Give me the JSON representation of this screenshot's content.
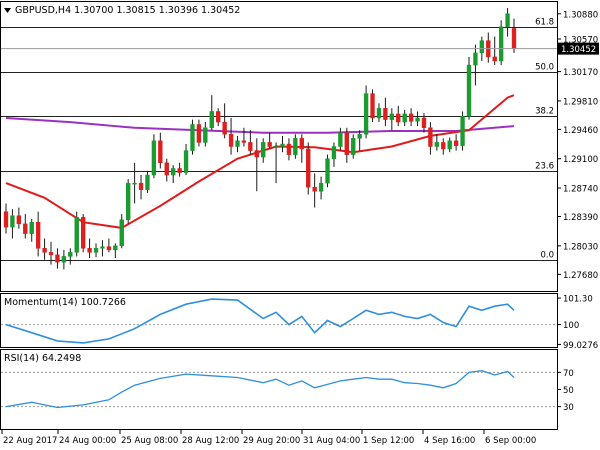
{
  "colors": {
    "up": "#1a9a2f",
    "down": "#dd1f1f",
    "wick": "#1a1a1a",
    "sma_fast": "#e11b1b",
    "sma_slow": "#9b30c2",
    "indicator": "#2f8fde",
    "fib_line": "#222222",
    "guide": "#9a9a9a",
    "axis": "#000000",
    "price_tag_bg": "#000000",
    "price_tag_fg": "#ffffff"
  },
  "icons": {
    "collapse": "triangle-down-icon"
  },
  "chart_data": [
    {
      "type": "candlestick",
      "title": "GBPUSD,H4  1.30700 1.30815 1.30396 1.30452",
      "symbol": "GBPUSD",
      "timeframe": "H4",
      "ohlc_header": {
        "open": 1.307,
        "high": 1.30815,
        "low": 1.30396,
        "close": 1.30452
      },
      "current_price_label": "1.30452",
      "ylim": [
        1.275,
        1.31
      ],
      "y_tick_labels": [
        "1.30880",
        "1.30570",
        "1.30170",
        "1.29810",
        "1.29460",
        "1.29100",
        "1.28740",
        "1.28390",
        "1.28030",
        "1.27680"
      ],
      "x_tick_labels": [
        "22 Aug 2017",
        "24 Aug 00:00",
        "25 Aug 08:00",
        "28 Aug 12:00",
        "29 Aug 20:00",
        "31 Aug 04:00",
        "1 Sep 12:00",
        "4 Sep 16:00",
        "6 Sep 00:00"
      ],
      "fib_levels": [
        {
          "label": "61.8",
          "price": 1.3072
        },
        {
          "label": "50.0",
          "price": 1.3017
        },
        {
          "label": "38.2",
          "price": 1.2963
        },
        {
          "label": "23.6",
          "price": 1.2895
        },
        {
          "label": "0.0",
          "price": 1.2786
        }
      ],
      "candles": [
        [
          1.2845,
          1.2855,
          1.2818,
          1.2826
        ],
        [
          1.2826,
          1.2848,
          1.2812,
          1.284
        ],
        [
          1.284,
          1.285,
          1.2824,
          1.283
        ],
        [
          1.283,
          1.2842,
          1.2812,
          1.2818
        ],
        [
          1.2818,
          1.2836,
          1.2808,
          1.2832
        ],
        [
          1.2832,
          1.2845,
          1.279,
          1.28
        ],
        [
          1.28,
          1.2812,
          1.2786,
          1.2795
        ],
        [
          1.2795,
          1.2808,
          1.278,
          1.2792
        ],
        [
          1.2792,
          1.28,
          1.2775,
          1.2783
        ],
        [
          1.2783,
          1.2798,
          1.2774,
          1.279
        ],
        [
          1.279,
          1.28,
          1.278,
          1.2795
        ],
        [
          1.2795,
          1.2845,
          1.279,
          1.2838
        ],
        [
          1.2838,
          1.2842,
          1.2795,
          1.28
        ],
        [
          1.28,
          1.2812,
          1.2788,
          1.2795
        ],
        [
          1.2795,
          1.2806,
          1.2789,
          1.28
        ],
        [
          1.28,
          1.281,
          1.279,
          1.2802
        ],
        [
          1.2802,
          1.2812,
          1.2795,
          1.2798
        ],
        [
          1.2798,
          1.2806,
          1.2788,
          1.2803
        ],
        [
          1.2803,
          1.2842,
          1.28,
          1.2835
        ],
        [
          1.2835,
          1.2885,
          1.283,
          1.288
        ],
        [
          1.288,
          1.2905,
          1.2855,
          1.288
        ],
        [
          1.288,
          1.289,
          1.286,
          1.2872
        ],
        [
          1.2872,
          1.2895,
          1.2868,
          1.289
        ],
        [
          1.289,
          1.294,
          1.2886,
          1.2932
        ],
        [
          1.2932,
          1.2942,
          1.2898,
          1.2905
        ],
        [
          1.2905,
          1.291,
          1.2882,
          1.289
        ],
        [
          1.289,
          1.2902,
          1.288,
          1.2898
        ],
        [
          1.2898,
          1.2905,
          1.2888,
          1.2893
        ],
        [
          1.2893,
          1.2928,
          1.289,
          1.292
        ],
        [
          1.292,
          1.2958,
          1.2915,
          1.2952
        ],
        [
          1.2952,
          1.2958,
          1.2925,
          1.293
        ],
        [
          1.293,
          1.2955,
          1.2925,
          1.2948
        ],
        [
          1.2948,
          1.2988,
          1.2945,
          1.2968
        ],
        [
          1.2968,
          1.2972,
          1.295,
          1.2955
        ],
        [
          1.2955,
          1.2978,
          1.2935,
          1.294
        ],
        [
          1.294,
          1.296,
          1.2915,
          1.2925
        ],
        [
          1.2925,
          1.2938,
          1.2918,
          1.2932
        ],
        [
          1.2932,
          1.2948,
          1.2925,
          1.293
        ],
        [
          1.293,
          1.2945,
          1.2915,
          1.292
        ],
        [
          1.292,
          1.2935,
          1.287,
          1.2912
        ],
        [
          1.2912,
          1.2935,
          1.2905,
          1.293
        ],
        [
          1.293,
          1.2942,
          1.2922,
          1.2925
        ],
        [
          1.2925,
          1.293,
          1.288,
          1.2925
        ],
        [
          1.2925,
          1.2938,
          1.2918,
          1.2928
        ],
        [
          1.2928,
          1.2935,
          1.2908,
          1.2915
        ],
        [
          1.2915,
          1.294,
          1.291,
          1.2935
        ],
        [
          1.2935,
          1.294,
          1.2905,
          1.2922
        ],
        [
          1.2922,
          1.293,
          1.2866,
          1.2875
        ],
        [
          1.2875,
          1.2892,
          1.285,
          1.287
        ],
        [
          1.287,
          1.2888,
          1.286,
          1.288
        ],
        [
          1.288,
          1.2915,
          1.2875,
          1.291
        ],
        [
          1.291,
          1.293,
          1.29,
          1.2925
        ],
        [
          1.2925,
          1.2948,
          1.292,
          1.2942
        ],
        [
          1.2942,
          1.2948,
          1.2905,
          1.2915
        ],
        [
          1.2915,
          1.294,
          1.291,
          1.2935
        ],
        [
          1.2935,
          1.2945,
          1.292,
          1.294
        ],
        [
          1.294,
          1.3,
          1.2935,
          1.299
        ],
        [
          1.299,
          1.2995,
          1.2955,
          1.296
        ],
        [
          1.296,
          1.2978,
          1.2955,
          1.2972
        ],
        [
          1.2972,
          1.2985,
          1.295,
          1.2958
        ],
        [
          1.2958,
          1.2972,
          1.2945,
          1.2965
        ],
        [
          1.2965,
          1.2975,
          1.295,
          1.2955
        ],
        [
          1.2955,
          1.297,
          1.295,
          1.2965
        ],
        [
          1.2965,
          1.2972,
          1.295,
          1.2956
        ],
        [
          1.2956,
          1.2968,
          1.295,
          1.296
        ],
        [
          1.296,
          1.2966,
          1.2942,
          1.2948
        ],
        [
          1.2948,
          1.2955,
          1.2915,
          1.2925
        ],
        [
          1.2925,
          1.294,
          1.292,
          1.293
        ],
        [
          1.293,
          1.2935,
          1.2915,
          1.2922
        ],
        [
          1.2922,
          1.2936,
          1.2918,
          1.2932
        ],
        [
          1.2932,
          1.294,
          1.292,
          1.2926
        ],
        [
          1.2926,
          1.2968,
          1.292,
          1.2962
        ],
        [
          1.2962,
          1.3035,
          1.2958,
          1.3025
        ],
        [
          1.3025,
          1.305,
          1.3,
          1.304
        ],
        [
          1.304,
          1.306,
          1.303,
          1.3055
        ],
        [
          1.3055,
          1.3065,
          1.3028,
          1.3035
        ],
        [
          1.3035,
          1.306,
          1.3025,
          1.303
        ],
        [
          1.303,
          1.308,
          1.3025,
          1.3072
        ],
        [
          1.3072,
          1.3095,
          1.306,
          1.3088
        ],
        [
          1.307,
          1.3082,
          1.304,
          1.3045
        ]
      ],
      "sma_fast": [
        [
          0,
          1.288
        ],
        [
          6,
          1.2862
        ],
        [
          12,
          1.2832
        ],
        [
          18,
          1.2825
        ],
        [
          24,
          1.2852
        ],
        [
          30,
          1.2882
        ],
        [
          36,
          1.291
        ],
        [
          42,
          1.2925
        ],
        [
          48,
          1.2924
        ],
        [
          54,
          1.2918
        ],
        [
          60,
          1.2925
        ],
        [
          66,
          1.2938
        ],
        [
          72,
          1.2945
        ],
        [
          78,
          1.2985
        ],
        [
          79,
          1.2988
        ]
      ],
      "sma_slow": [
        [
          0,
          1.296
        ],
        [
          10,
          1.2955
        ],
        [
          20,
          1.2948
        ],
        [
          30,
          1.2945
        ],
        [
          40,
          1.2942
        ],
        [
          50,
          1.2942
        ],
        [
          60,
          1.2944
        ],
        [
          70,
          1.2944
        ],
        [
          79,
          1.295
        ]
      ]
    },
    {
      "type": "line",
      "title": "Momentum(14) 100.7266",
      "label": "Momentum(14)",
      "value_label": "100.7266",
      "ylim": [
        98.95,
        101.45
      ],
      "y_tick_labels": [
        "101.30",
        "100",
        "99.0276"
      ],
      "reference_level": 100,
      "values": [
        [
          0,
          100.0
        ],
        [
          4,
          99.6
        ],
        [
          8,
          99.2
        ],
        [
          12,
          99.1
        ],
        [
          16,
          99.3
        ],
        [
          20,
          99.8
        ],
        [
          24,
          100.5
        ],
        [
          28,
          101.0
        ],
        [
          32,
          101.25
        ],
        [
          36,
          101.2
        ],
        [
          40,
          100.3
        ],
        [
          42,
          100.6
        ],
        [
          44,
          100.0
        ],
        [
          46,
          100.4
        ],
        [
          48,
          99.6
        ],
        [
          50,
          100.2
        ],
        [
          52,
          99.9
        ],
        [
          54,
          100.3
        ],
        [
          56,
          100.7
        ],
        [
          58,
          100.5
        ],
        [
          60,
          100.6
        ],
        [
          62,
          100.4
        ],
        [
          64,
          100.3
        ],
        [
          66,
          100.5
        ],
        [
          68,
          100.1
        ],
        [
          70,
          99.9
        ],
        [
          72,
          100.9
        ],
        [
          74,
          100.7
        ],
        [
          76,
          100.9
        ],
        [
          78,
          101.0
        ],
        [
          79,
          100.7
        ]
      ]
    },
    {
      "type": "line",
      "title": "RSI(14) 64.2498",
      "label": "RSI(14)",
      "value_label": "64.2498",
      "ylim": [
        5,
        95
      ],
      "y_tick_labels": [
        "70",
        "50",
        "30"
      ],
      "reference_levels": [
        70,
        30
      ],
      "values": [
        [
          0,
          30
        ],
        [
          4,
          35
        ],
        [
          8,
          29
        ],
        [
          12,
          32
        ],
        [
          16,
          38
        ],
        [
          18,
          47
        ],
        [
          20,
          55
        ],
        [
          24,
          63
        ],
        [
          28,
          68
        ],
        [
          32,
          66
        ],
        [
          36,
          64
        ],
        [
          40,
          58
        ],
        [
          42,
          62
        ],
        [
          44,
          55
        ],
        [
          46,
          60
        ],
        [
          48,
          52
        ],
        [
          50,
          56
        ],
        [
          52,
          60
        ],
        [
          54,
          62
        ],
        [
          56,
          64
        ],
        [
          58,
          62
        ],
        [
          60,
          62
        ],
        [
          62,
          58
        ],
        [
          64,
          57
        ],
        [
          66,
          55
        ],
        [
          68,
          52
        ],
        [
          70,
          57
        ],
        [
          72,
          70
        ],
        [
          74,
          72
        ],
        [
          76,
          67
        ],
        [
          78,
          71
        ],
        [
          79,
          64
        ]
      ]
    }
  ]
}
